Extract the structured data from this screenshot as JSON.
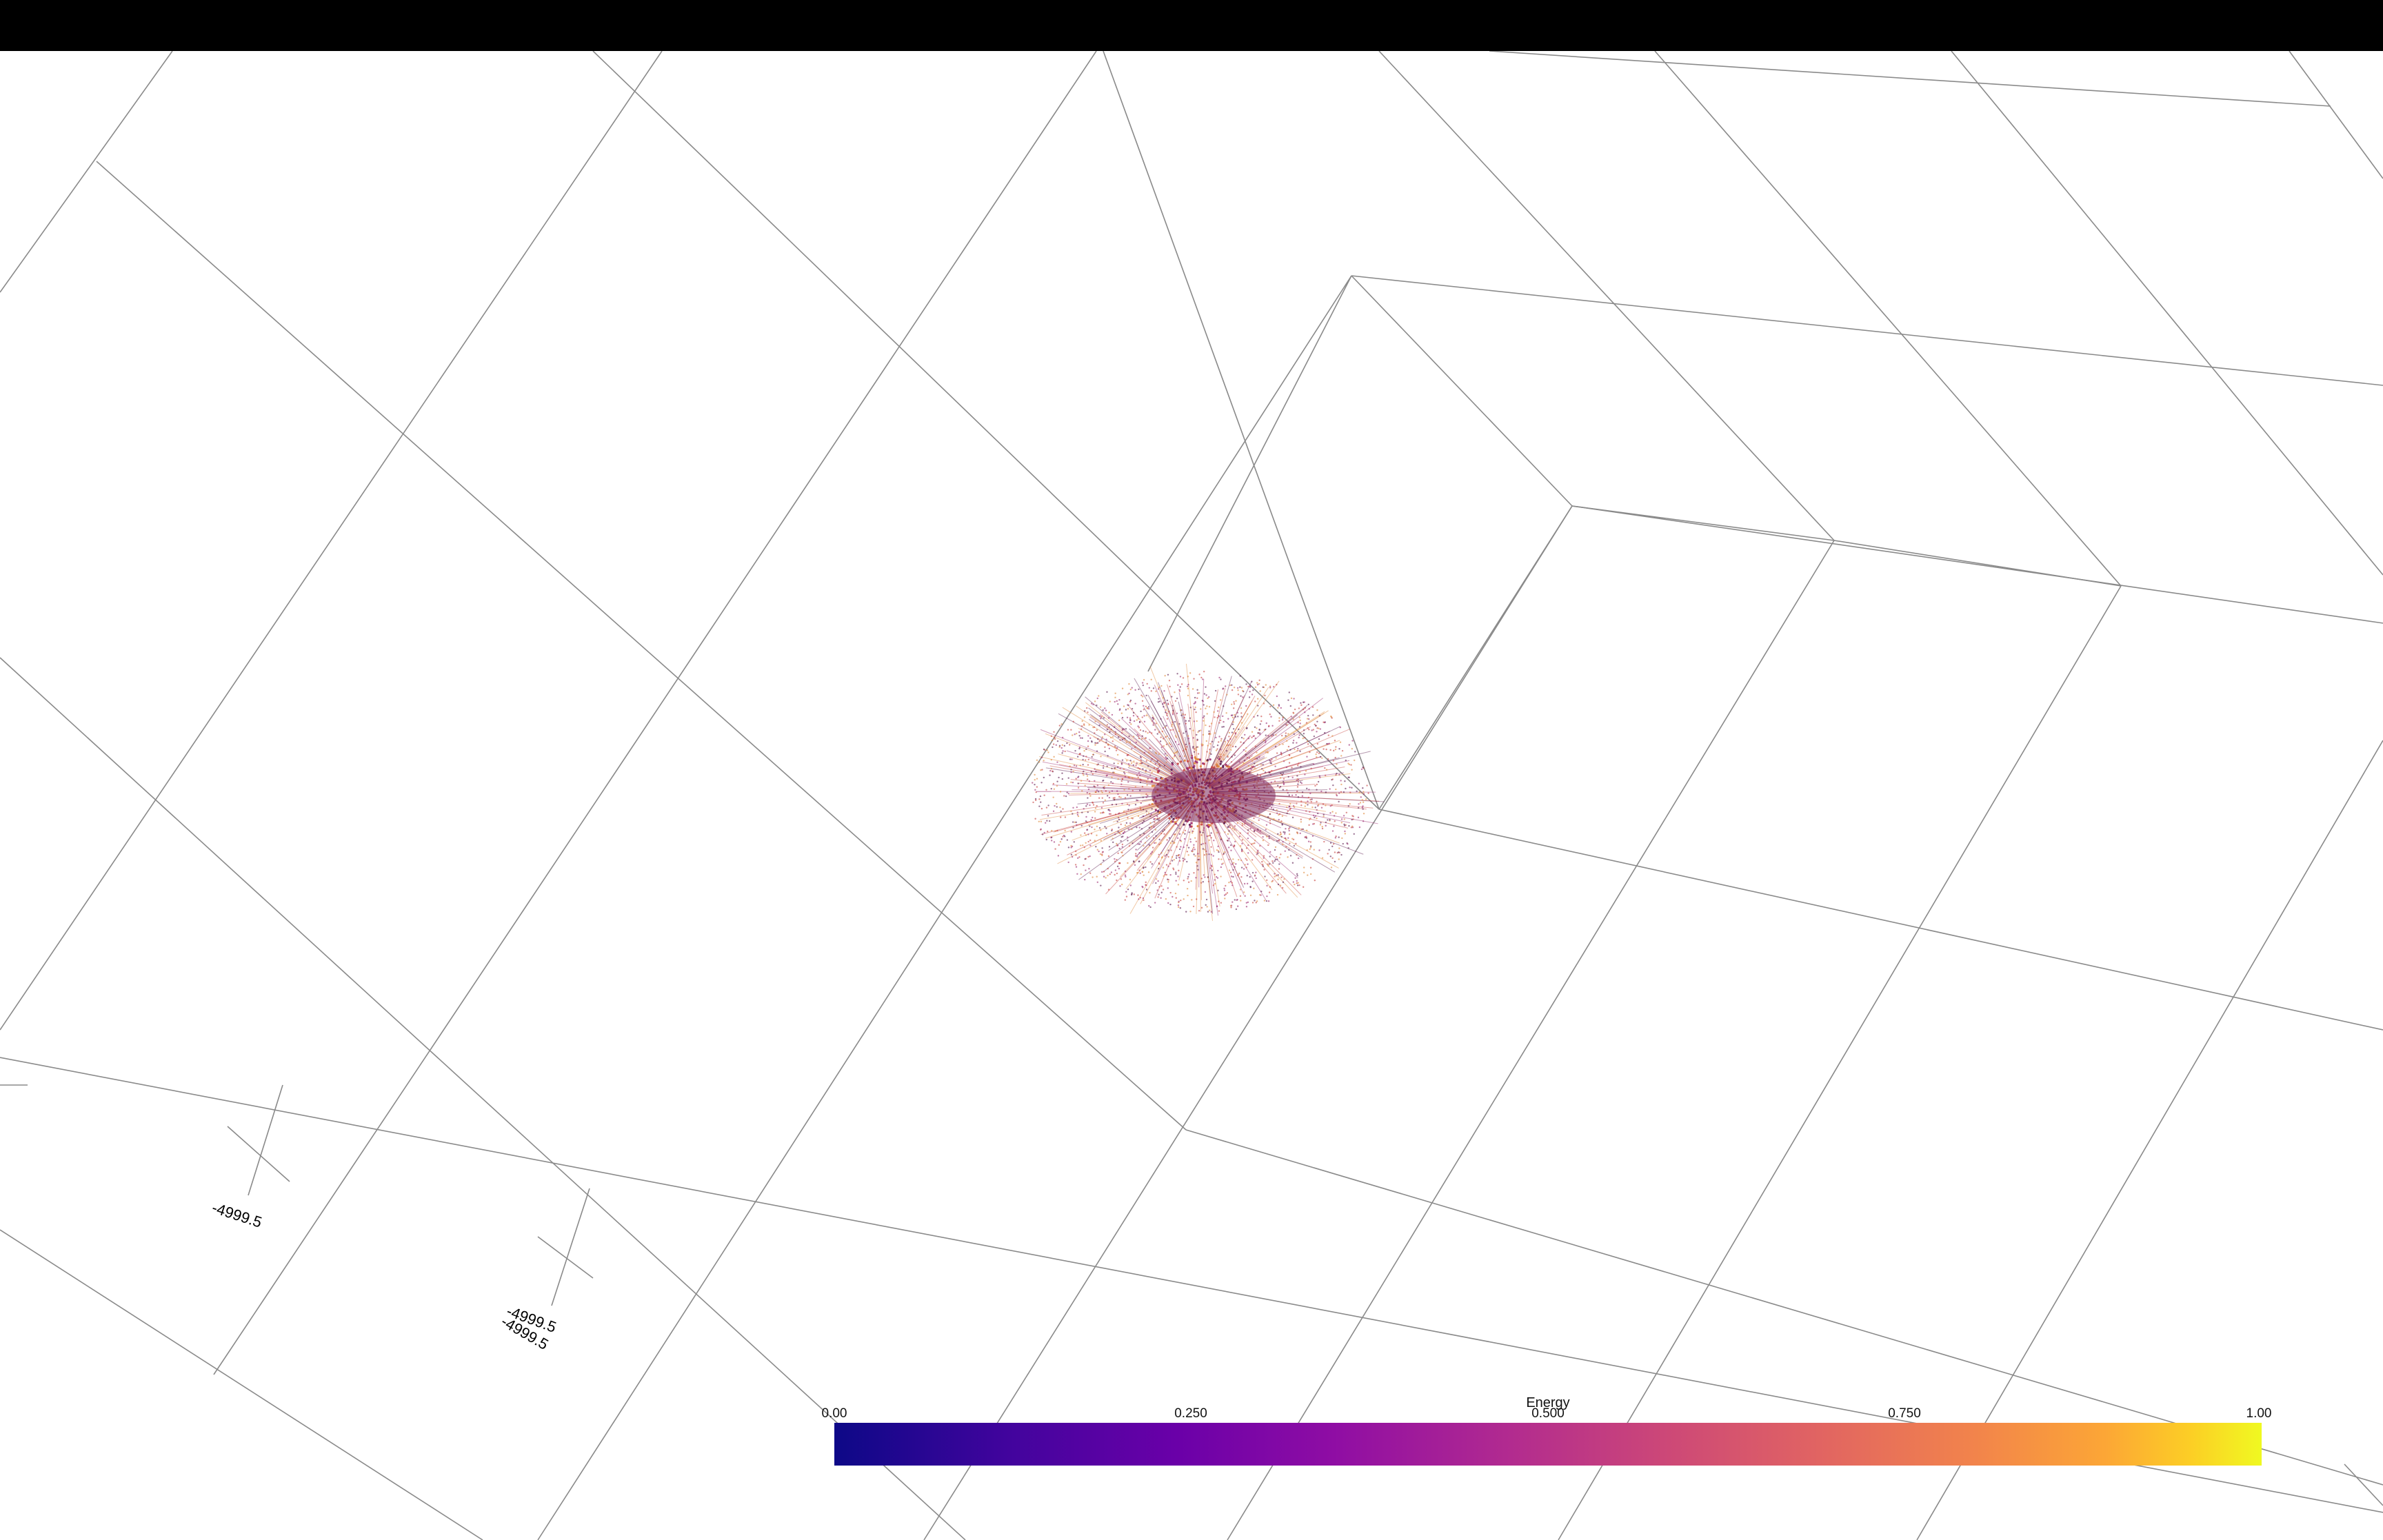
{
  "window": {
    "title_bar_color": "#000000",
    "background_color": "#ffffff"
  },
  "viewport": {
    "grid_line_color": "#8a8a8a",
    "point_cloud": {
      "shape": "radial starburst cluster",
      "colormap": "plasma",
      "dominant_colors": [
        "#5b1a4e",
        "#9c2a6f",
        "#c8433f",
        "#e0883a"
      ]
    }
  },
  "axes": {
    "tick_labels": [
      {
        "text": "-4999.5"
      },
      {
        "text": "-4999.5"
      },
      {
        "text": "-4999.5"
      }
    ]
  },
  "colorbar": {
    "title": "Energy",
    "ticks": [
      "0.00",
      "0.250",
      "0.500",
      "0.750",
      "1.00"
    ],
    "colormap": "plasma",
    "colors": [
      "#0d0887",
      "#6a00a8",
      "#b12a90",
      "#e16462",
      "#fca636",
      "#f0f921"
    ]
  }
}
